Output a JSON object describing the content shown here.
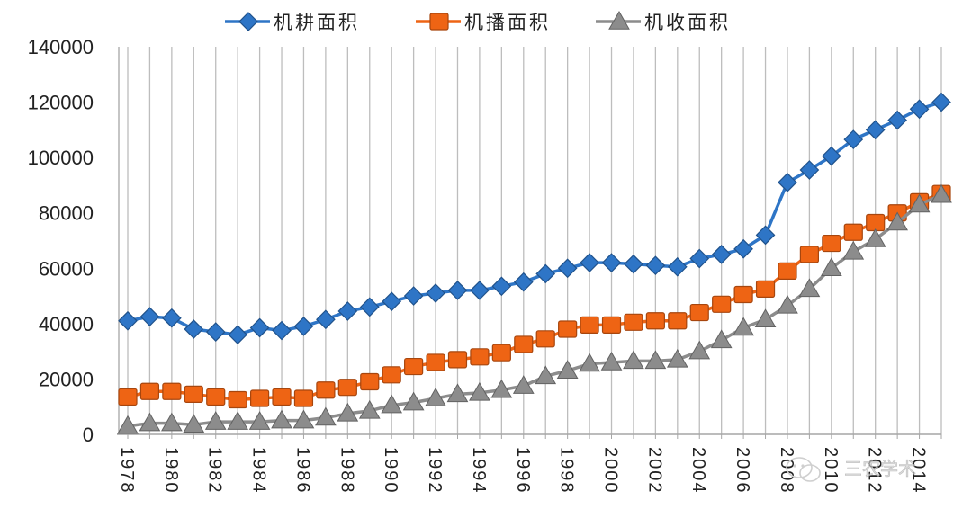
{
  "chart_data": {
    "type": "line",
    "title": "",
    "xlabel": "",
    "ylabel": "",
    "ylim": [
      0,
      140000
    ],
    "yticks": [
      "0",
      "20000",
      "40000",
      "60000",
      "80000",
      "100000",
      "120000",
      "140000"
    ],
    "ytick_values": [
      0,
      20000,
      40000,
      60000,
      80000,
      100000,
      120000,
      140000
    ],
    "x": [
      1978,
      1979,
      1980,
      1981,
      1982,
      1983,
      1984,
      1985,
      1986,
      1987,
      1988,
      1989,
      1990,
      1991,
      1992,
      1993,
      1994,
      1995,
      1996,
      1997,
      1998,
      1999,
      2000,
      2001,
      2002,
      2003,
      2004,
      2005,
      2006,
      2007,
      2008,
      2009,
      2010,
      2011,
      2012,
      2013,
      2014,
      2015
    ],
    "xtick_labels": [
      "1978",
      "1980",
      "1982",
      "1984",
      "1986",
      "1988",
      "1990",
      "1992",
      "1994",
      "1996",
      "1998",
      "2000",
      "2002",
      "2004",
      "2006",
      "2008",
      "2010",
      "2012",
      "2014"
    ],
    "grid": "vertical",
    "legend_position": "top",
    "series": [
      {
        "name": "机耕面积",
        "color": "#2e75c6",
        "marker": "diamond",
        "values": [
          41000,
          42500,
          42000,
          38000,
          37000,
          36000,
          38500,
          37500,
          39000,
          41500,
          44500,
          46000,
          48000,
          50000,
          51000,
          52000,
          52000,
          53500,
          55000,
          58000,
          60000,
          62000,
          62000,
          61500,
          61000,
          60500,
          63500,
          65000,
          67000,
          72000,
          91000,
          95500,
          100500,
          106500,
          110000,
          113500,
          117500,
          120000
        ]
      },
      {
        "name": "机播面积",
        "color": "#ee6414",
        "marker": "square",
        "values": [
          13500,
          15500,
          15500,
          14500,
          13500,
          12500,
          13000,
          13500,
          13000,
          16000,
          17000,
          19000,
          21500,
          24500,
          26000,
          27000,
          28000,
          29500,
          32500,
          34500,
          38000,
          39500,
          39500,
          40500,
          41000,
          41000,
          44000,
          47000,
          50500,
          52500,
          59000,
          65000,
          69000,
          73000,
          76500,
          80000,
          84000,
          87000
        ]
      },
      {
        "name": "机收面积",
        "color": "#8c8c8c",
        "marker": "triangle",
        "values": [
          3000,
          4000,
          4000,
          3500,
          4500,
          4500,
          4500,
          5000,
          5000,
          6000,
          7500,
          8500,
          10500,
          11500,
          13000,
          14500,
          15000,
          16000,
          17500,
          21000,
          23000,
          25500,
          26000,
          26500,
          26500,
          27000,
          30000,
          34000,
          38500,
          41500,
          46500,
          52500,
          60000,
          66000,
          70500,
          76500,
          83000,
          86500
        ]
      }
    ]
  },
  "watermark": {
    "text": "三农学术",
    "icon": "wechat-icon"
  }
}
